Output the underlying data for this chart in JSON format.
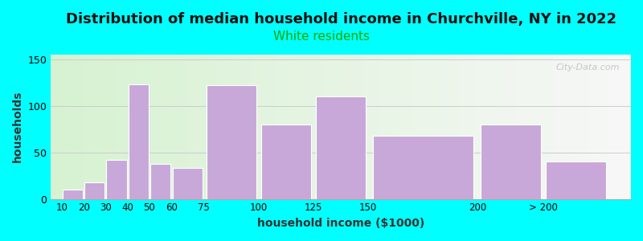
{
  "title": "Distribution of median household income in Churchville, NY in 2022",
  "subtitle": "White residents",
  "xlabel": "household income ($1000)",
  "ylabel": "households",
  "bar_lefts": [
    10,
    20,
    30,
    40,
    50,
    60,
    75,
    100,
    125,
    150,
    200,
    230
  ],
  "bar_widths": [
    10,
    10,
    10,
    10,
    10,
    15,
    25,
    25,
    25,
    50,
    30,
    30
  ],
  "bar_values": [
    10,
    18,
    42,
    123,
    38,
    33,
    122,
    80,
    110,
    68,
    80,
    40
  ],
  "bar_color": "#c8a8d8",
  "bar_edgecolor": "#ffffff",
  "background_color": "#00ffff",
  "ylim": [
    0,
    155
  ],
  "yticks": [
    0,
    50,
    100,
    150
  ],
  "xtick_positions": [
    10,
    20,
    30,
    40,
    50,
    60,
    75,
    100,
    125,
    150,
    200,
    230
  ],
  "xtick_labels": [
    "10",
    "20",
    "30",
    "40",
    "50",
    "60",
    "75",
    "100",
    "125",
    "150",
    "200",
    "> 200"
  ],
  "xlim": [
    5,
    270
  ],
  "title_fontsize": 13,
  "subtitle_fontsize": 11,
  "subtitle_color": "#00aa00",
  "axis_label_fontsize": 10,
  "watermark": "City-Data.com"
}
